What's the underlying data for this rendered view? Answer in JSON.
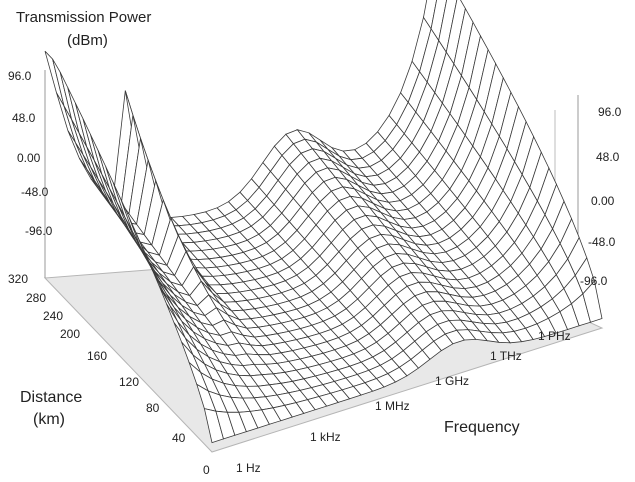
{
  "chart_data": {
    "type": "surface-3d",
    "zlabel_line1": "Transmission Power",
    "zlabel_line2": "(dBm)",
    "xlabel": "Frequency",
    "ylabel_line1": "Distance",
    "ylabel_line2": "(km)",
    "z_ticks": [
      "96.0",
      "48.0",
      "0.00",
      "-48.0",
      "-96.0"
    ],
    "z_range": [
      -120,
      120
    ],
    "x_ticks": [
      "1 Hz",
      "1 kHz",
      "1 MHz",
      "1 GHz",
      "1 THz",
      "1 PHz"
    ],
    "x_log10_range": [
      0,
      15
    ],
    "y_ticks": [
      "0",
      "40",
      "80",
      "120",
      "160",
      "200",
      "240",
      "280",
      "320"
    ],
    "y_range": [
      0,
      320
    ],
    "scale": "log frequency",
    "grid": "wireframe",
    "colors": {
      "line": "#3a3a3a",
      "surface": "#ffffff",
      "floor": "#e8e8e8",
      "wall_line": "#9a9a9a"
    }
  }
}
